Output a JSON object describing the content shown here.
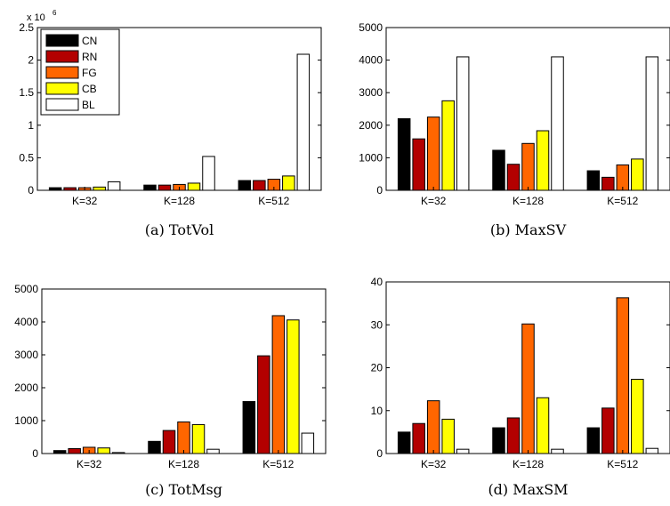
{
  "colors": {
    "CN": "#000000",
    "RN": "#b30000",
    "FG": "#ff6600",
    "CB": "#ffff00",
    "BL": "#ffffff"
  },
  "chart_data": [
    {
      "type": "bar",
      "caption": "(a) TotVol",
      "categories": [
        "K=32",
        "K=128",
        "K=512"
      ],
      "ylim": [
        0,
        2.5
      ],
      "yticks": [
        0,
        0.5,
        1,
        1.5,
        2,
        2.5
      ],
      "y_multiplier": "x 10",
      "y_multiplier_exponent": "6",
      "legend": [
        "CN",
        "RN",
        "FG",
        "CB",
        "BL"
      ],
      "legend_position": "top-left",
      "series": [
        {
          "name": "CN",
          "values": [
            0.04,
            0.08,
            0.15
          ]
        },
        {
          "name": "RN",
          "values": [
            0.04,
            0.08,
            0.15
          ]
        },
        {
          "name": "FG",
          "values": [
            0.04,
            0.09,
            0.17
          ]
        },
        {
          "name": "CB",
          "values": [
            0.05,
            0.11,
            0.22
          ]
        },
        {
          "name": "BL",
          "values": [
            0.13,
            0.52,
            2.09
          ]
        }
      ]
    },
    {
      "type": "bar",
      "caption": "(b) MaxSV",
      "categories": [
        "K=32",
        "K=128",
        "K=512"
      ],
      "ylim": [
        0,
        5000
      ],
      "yticks": [
        0,
        1000,
        2000,
        3000,
        4000,
        5000
      ],
      "series": [
        {
          "name": "CN",
          "values": [
            2200,
            1230,
            600
          ]
        },
        {
          "name": "RN",
          "values": [
            1580,
            800,
            400
          ]
        },
        {
          "name": "FG",
          "values": [
            2250,
            1440,
            780
          ]
        },
        {
          "name": "CB",
          "values": [
            2750,
            1830,
            960
          ]
        },
        {
          "name": "BL",
          "values": [
            4100,
            4100,
            4100
          ]
        }
      ]
    },
    {
      "type": "bar",
      "caption": "(c) TotMsg",
      "categories": [
        "K=32",
        "K=128",
        "K=512"
      ],
      "ylim": [
        0,
        5000
      ],
      "yticks": [
        0,
        1000,
        2000,
        3000,
        4000,
        5000
      ],
      "series": [
        {
          "name": "CN",
          "values": [
            90,
            370,
            1580
          ]
        },
        {
          "name": "RN",
          "values": [
            150,
            700,
            2970
          ]
        },
        {
          "name": "FG",
          "values": [
            190,
            960,
            4190
          ]
        },
        {
          "name": "CB",
          "values": [
            170,
            880,
            4060
          ]
        },
        {
          "name": "BL",
          "values": [
            30,
            130,
            620
          ]
        }
      ]
    },
    {
      "type": "bar",
      "caption": "(d) MaxSM",
      "categories": [
        "K=32",
        "K=128",
        "K=512"
      ],
      "ylim": [
        0,
        40
      ],
      "yticks": [
        0,
        10,
        20,
        30,
        40
      ],
      "series": [
        {
          "name": "CN",
          "values": [
            5,
            6,
            6
          ]
        },
        {
          "name": "RN",
          "values": [
            7,
            8.3,
            10.6
          ]
        },
        {
          "name": "FG",
          "values": [
            12.3,
            30.2,
            36.3
          ]
        },
        {
          "name": "CB",
          "values": [
            8,
            13,
            17.3
          ]
        },
        {
          "name": "BL",
          "values": [
            1,
            1,
            1.2
          ]
        }
      ]
    }
  ]
}
